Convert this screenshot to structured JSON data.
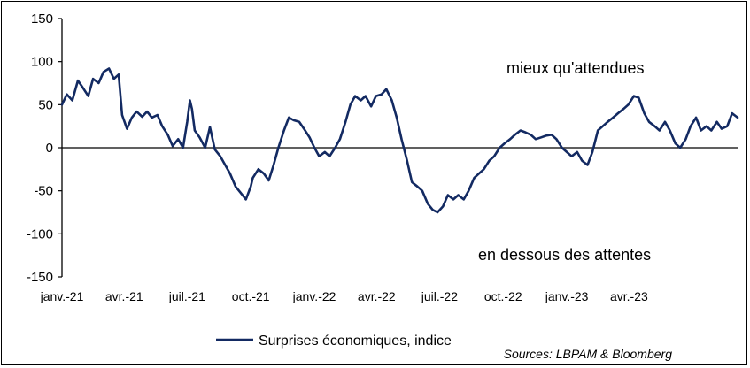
{
  "chart_data": {
    "type": "line",
    "ylim": [
      -150,
      150
    ],
    "yticks": [
      150,
      100,
      50,
      0,
      -50,
      -100,
      -150
    ],
    "ytick_labels": [
      "150",
      "100",
      "50",
      "0",
      "-50",
      "-100",
      "-150"
    ],
    "x_range": [
      "2021-01-01",
      "2023-09-05"
    ],
    "xticks": [
      "2021-01-01",
      "2021-04-01",
      "2021-07-01",
      "2021-10-01",
      "2022-01-01",
      "2022-04-01",
      "2022-07-01",
      "2022-10-01",
      "2023-01-01",
      "2023-04-01"
    ],
    "xtick_labels": [
      "janv.-21",
      "avr.-21",
      "juil.-21",
      "oct.-21",
      "janv.-22",
      "avr.-22",
      "juil.-22",
      "oct.-22",
      "janv.-23",
      "avr.-23"
    ],
    "annotations": {
      "above": "mieux qu'attendues",
      "below": "en dessous des attentes"
    },
    "legend_position": "bottom",
    "series": [
      {
        "name": "Surprises économiques, indice",
        "color": "#132A62",
        "points": [
          [
            "2021-01-01",
            50
          ],
          [
            "2021-01-08",
            62
          ],
          [
            "2021-01-16",
            55
          ],
          [
            "2021-01-24",
            78
          ],
          [
            "2021-01-31",
            70
          ],
          [
            "2021-02-08",
            60
          ],
          [
            "2021-02-15",
            80
          ],
          [
            "2021-02-23",
            75
          ],
          [
            "2021-03-02",
            88
          ],
          [
            "2021-03-10",
            92
          ],
          [
            "2021-03-17",
            80
          ],
          [
            "2021-03-24",
            85
          ],
          [
            "2021-03-29",
            38
          ],
          [
            "2021-04-05",
            22
          ],
          [
            "2021-04-12",
            35
          ],
          [
            "2021-04-19",
            42
          ],
          [
            "2021-04-27",
            36
          ],
          [
            "2021-05-04",
            42
          ],
          [
            "2021-05-11",
            35
          ],
          [
            "2021-05-19",
            38
          ],
          [
            "2021-05-26",
            25
          ],
          [
            "2021-06-03",
            15
          ],
          [
            "2021-06-10",
            2
          ],
          [
            "2021-06-18",
            10
          ],
          [
            "2021-06-25",
            0
          ],
          [
            "2021-07-01",
            30
          ],
          [
            "2021-07-05",
            55
          ],
          [
            "2021-07-08",
            45
          ],
          [
            "2021-07-12",
            20
          ],
          [
            "2021-07-19",
            12
          ],
          [
            "2021-07-27",
            0
          ],
          [
            "2021-08-03",
            24
          ],
          [
            "2021-08-10",
            -2
          ],
          [
            "2021-08-18",
            -10
          ],
          [
            "2021-08-25",
            -20
          ],
          [
            "2021-09-01",
            -30
          ],
          [
            "2021-09-09",
            -45
          ],
          [
            "2021-09-16",
            -52
          ],
          [
            "2021-09-24",
            -60
          ],
          [
            "2021-10-01",
            -45
          ],
          [
            "2021-10-04",
            -35
          ],
          [
            "2021-10-12",
            -25
          ],
          [
            "2021-10-20",
            -30
          ],
          [
            "2021-10-27",
            -38
          ],
          [
            "2021-11-03",
            -20
          ],
          [
            "2021-11-10",
            0
          ],
          [
            "2021-11-18",
            20
          ],
          [
            "2021-11-25",
            35
          ],
          [
            "2021-12-02",
            32
          ],
          [
            "2021-12-10",
            30
          ],
          [
            "2021-12-17",
            22
          ],
          [
            "2021-12-25",
            12
          ],
          [
            "2022-01-01",
            0
          ],
          [
            "2022-01-08",
            -10
          ],
          [
            "2022-01-16",
            -5
          ],
          [
            "2022-01-23",
            -10
          ],
          [
            "2022-01-31",
            0
          ],
          [
            "2022-02-07",
            10
          ],
          [
            "2022-02-15",
            30
          ],
          [
            "2022-02-22",
            50
          ],
          [
            "2022-03-01",
            60
          ],
          [
            "2022-03-09",
            55
          ],
          [
            "2022-03-16",
            60
          ],
          [
            "2022-03-24",
            48
          ],
          [
            "2022-03-31",
            60
          ],
          [
            "2022-04-08",
            62
          ],
          [
            "2022-04-15",
            68
          ],
          [
            "2022-04-23",
            55
          ],
          [
            "2022-04-30",
            35
          ],
          [
            "2022-05-07",
            10
          ],
          [
            "2022-05-15",
            -15
          ],
          [
            "2022-05-22",
            -40
          ],
          [
            "2022-05-30",
            -45
          ],
          [
            "2022-06-06",
            -50
          ],
          [
            "2022-06-14",
            -65
          ],
          [
            "2022-06-21",
            -72
          ],
          [
            "2022-06-28",
            -75
          ],
          [
            "2022-07-06",
            -68
          ],
          [
            "2022-07-13",
            -55
          ],
          [
            "2022-07-21",
            -60
          ],
          [
            "2022-07-28",
            -55
          ],
          [
            "2022-08-05",
            -60
          ],
          [
            "2022-08-12",
            -50
          ],
          [
            "2022-08-20",
            -35
          ],
          [
            "2022-08-27",
            -30
          ],
          [
            "2022-09-03",
            -25
          ],
          [
            "2022-09-11",
            -15
          ],
          [
            "2022-09-18",
            -10
          ],
          [
            "2022-09-26",
            0
          ],
          [
            "2022-10-03",
            5
          ],
          [
            "2022-10-11",
            10
          ],
          [
            "2022-10-18",
            15
          ],
          [
            "2022-10-26",
            20
          ],
          [
            "2022-11-02",
            18
          ],
          [
            "2022-11-10",
            15
          ],
          [
            "2022-11-17",
            10
          ],
          [
            "2022-11-25",
            12
          ],
          [
            "2022-12-02",
            14
          ],
          [
            "2022-12-10",
            15
          ],
          [
            "2022-12-17",
            10
          ],
          [
            "2022-12-25",
            0
          ],
          [
            "2023-01-01",
            -5
          ],
          [
            "2023-01-08",
            -10
          ],
          [
            "2023-01-16",
            -5
          ],
          [
            "2023-01-23",
            -15
          ],
          [
            "2023-01-31",
            -20
          ],
          [
            "2023-02-07",
            -5
          ],
          [
            "2023-02-15",
            20
          ],
          [
            "2023-02-22",
            25
          ],
          [
            "2023-03-01",
            30
          ],
          [
            "2023-03-09",
            35
          ],
          [
            "2023-03-16",
            40
          ],
          [
            "2023-03-24",
            45
          ],
          [
            "2023-03-31",
            50
          ],
          [
            "2023-04-08",
            60
          ],
          [
            "2023-04-15",
            58
          ],
          [
            "2023-04-23",
            40
          ],
          [
            "2023-04-30",
            30
          ],
          [
            "2023-05-08",
            25
          ],
          [
            "2023-05-15",
            20
          ],
          [
            "2023-05-23",
            30
          ],
          [
            "2023-05-30",
            20
          ],
          [
            "2023-06-07",
            5
          ],
          [
            "2023-06-14",
            0
          ],
          [
            "2023-06-22",
            10
          ],
          [
            "2023-06-29",
            25
          ],
          [
            "2023-07-07",
            35
          ],
          [
            "2023-07-14",
            20
          ],
          [
            "2023-07-22",
            25
          ],
          [
            "2023-07-29",
            20
          ],
          [
            "2023-08-06",
            30
          ],
          [
            "2023-08-13",
            22
          ],
          [
            "2023-08-21",
            25
          ],
          [
            "2023-08-28",
            40
          ],
          [
            "2023-09-05",
            35
          ]
        ]
      }
    ]
  },
  "source_text": "Sources: LBPAM & Bloomberg"
}
